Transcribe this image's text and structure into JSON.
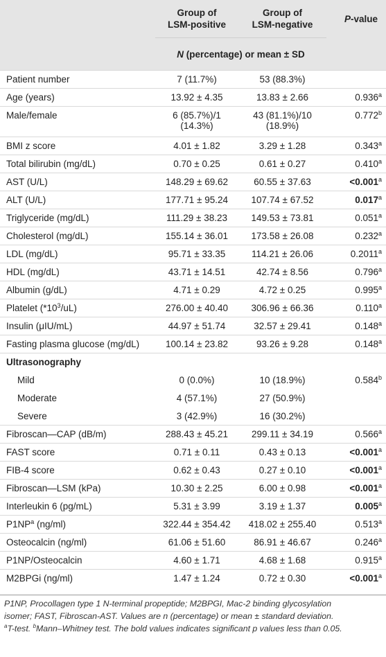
{
  "header": {
    "col1": "Group of",
    "col1b": "LSM-positive",
    "col2": "Group of",
    "col2b": "LSM-negative",
    "pvalue_italic": "P",
    "pvalue_rest": "-value",
    "subheader_italic": "N",
    "subheader_rest": " (percentage) or mean ± SD"
  },
  "rows": [
    {
      "label": "Patient number",
      "pos": "7 (11.7%)",
      "neg": "53 (88.3%)",
      "p": "",
      "sup": "",
      "bold": false,
      "h": 26
    },
    {
      "label": "Age (years)",
      "pos": "13.92 ± 4.35",
      "neg": "13.83 ± 2.66",
      "p": "0.936",
      "sup": "a",
      "bold": false,
      "h": 26
    },
    {
      "label": "Male/female",
      "pos": "6 (85.7%)/1",
      "pos2": "(14.3%)",
      "neg": "43 (81.1%)/10",
      "neg2": "(18.9%)",
      "p": "0.772",
      "sup": "b",
      "bold": false,
      "h": 44
    },
    {
      "label": "BMI z score",
      "pos": "4.01 ± 1.82",
      "neg": "3.29 ± 1.28",
      "p": "0.343",
      "sup": "a",
      "bold": false,
      "h": 26
    },
    {
      "label": "Total bilirubin (mg/dL)",
      "pos": "0.70 ± 0.25",
      "neg": "0.61 ± 0.27",
      "p": "0.410",
      "sup": "a",
      "bold": false,
      "h": 26
    },
    {
      "label": "AST (U/L)",
      "pos": "148.29 ± 69.62",
      "neg": "60.55 ± 37.63",
      "p": "<0.001",
      "sup": "a",
      "bold": true,
      "h": 26
    },
    {
      "label": "ALT (U/L)",
      "pos": "177.71 ± 95.24",
      "neg": "107.74 ± 67.52",
      "p": "0.017",
      "sup": "a",
      "bold": true,
      "h": 26
    },
    {
      "label": "Triglyceride (mg/dL)",
      "pos": "111.29 ± 38.23",
      "neg": "149.53 ± 73.81",
      "p": "0.051",
      "sup": "a",
      "bold": false,
      "h": 26
    },
    {
      "label": "Cholesterol (mg/dL)",
      "pos": "155.14 ± 36.01",
      "neg": "173.58 ± 26.08",
      "p": "0.232",
      "sup": "a",
      "bold": false,
      "h": 26
    },
    {
      "label": "LDL (mg/dL)",
      "pos": "95.71 ± 33.35",
      "neg": "114.21 ± 26.06",
      "p": "0.2011",
      "sup": "a",
      "bold": false,
      "h": 26
    },
    {
      "label": "HDL (mg/dL)",
      "pos": "43.71 ± 14.51",
      "neg": "42.74 ± 8.56",
      "p": "0.796",
      "sup": "a",
      "bold": false,
      "h": 26
    },
    {
      "label": "Albumin (g/dL)",
      "pos": "4.71 ± 0.29",
      "neg": "4.72 ± 0.25",
      "p": "0.995",
      "sup": "a",
      "bold": false,
      "h": 26
    },
    {
      "label": "Platelet (*10",
      "labelsup": "3",
      "label2": "/uL)",
      "pos": "276.00 ± 40.40",
      "neg": "306.96 ± 66.36",
      "p": "0.110",
      "sup": "a",
      "bold": false,
      "h": 26
    },
    {
      "label": "Insulin (μIU/mL)",
      "pos": "44.97 ± 51.74",
      "neg": "32.57 ± 29.41",
      "p": "0.148",
      "sup": "a",
      "bold": false,
      "h": 26
    },
    {
      "label": "Fasting plasma glucose (mg/dL)",
      "pos": "100.14 ± 23.82",
      "neg": "93.26 ± 9.28",
      "p": "0.148",
      "sup": "a",
      "bold": false,
      "h": 26
    },
    {
      "section": "Ultrasonography",
      "h": 26
    },
    {
      "label": "Mild",
      "indent": true,
      "pos": "0 (0.0%)",
      "neg": "10 (18.9%)",
      "p": "0.584",
      "sup": "b",
      "bold": false,
      "h": 26,
      "noline": true
    },
    {
      "label": "Moderate",
      "indent": true,
      "pos": "4 (57.1%)",
      "neg": "27 (50.9%)",
      "p": "",
      "sup": "",
      "bold": false,
      "h": 26,
      "noline": true
    },
    {
      "label": "Severe",
      "indent": true,
      "pos": "3 (42.9%)",
      "neg": "16 (30.2%)",
      "p": "",
      "sup": "",
      "bold": false,
      "h": 26,
      "noline": true
    },
    {
      "label": "Fibroscan—CAP (dB/m)",
      "pos": "288.43 ± 45.21",
      "neg": "299.11 ± 34.19",
      "p": "0.566",
      "sup": "a",
      "bold": false,
      "h": 26
    },
    {
      "label": "FAST score",
      "pos": "0.71 ± 0.11",
      "neg": "0.43 ± 0.13",
      "p": "<0.001",
      "sup": "a",
      "bold": true,
      "h": 26
    },
    {
      "label": "FIB-4 score",
      "pos": "0.62 ± 0.43",
      "neg": "0.27 ± 0.10",
      "p": "<0.001",
      "sup": "a",
      "bold": true,
      "h": 26
    },
    {
      "label": "Fibroscan—LSM (kPa)",
      "pos": "10.30 ± 2.25",
      "neg": "6.00 ± 0.98",
      "p": "<0.001",
      "sup": "a",
      "bold": true,
      "h": 26
    },
    {
      "label": "Interleukin 6 (pg/mL)",
      "pos": "5.31 ± 3.99",
      "neg": "3.19 ± 1.37",
      "p": "0.005",
      "sup": "a",
      "bold": true,
      "h": 26
    },
    {
      "label": "P1NP",
      "labelsup": "a",
      "label2": " (ng/ml)",
      "pos": "322.44 ± 354.42",
      "neg": "418.02 ± 255.40",
      "p": "0.513",
      "sup": "a",
      "bold": false,
      "h": 26
    },
    {
      "label": "Osteocalcin (ng/ml)",
      "pos": "61.06 ± 51.60",
      "neg": "86.91 ± 46.67",
      "p": "0.246",
      "sup": "a",
      "bold": false,
      "h": 26
    },
    {
      "label": "P1NP/Osteocalcin",
      "pos": "4.60 ± 1.71",
      "neg": "4.68 ± 1.68",
      "p": "0.915",
      "sup": "a",
      "bold": false,
      "h": 26
    },
    {
      "label": "M2BPGi (ng/ml)",
      "pos": "1.47 ± 1.24",
      "neg": "0.72 ± 0.30",
      "p": "<0.001",
      "sup": "a",
      "bold": true,
      "h": 26
    }
  ],
  "footnote": {
    "line1": "P1NP, Procollagen type 1 N-terminal propeptide; M2BPGI, Mac-2 binding glycosylation",
    "line2": "isomer; FAST, Fibroscan-AST. Values are n (percentage) or mean ± standard deviation.",
    "sup_a": "a",
    "ttest": "T-test. ",
    "sup_b": "b",
    "line3_rest": "Mann–Whitney test. The bold values indicates significant p values less than 0.05."
  }
}
